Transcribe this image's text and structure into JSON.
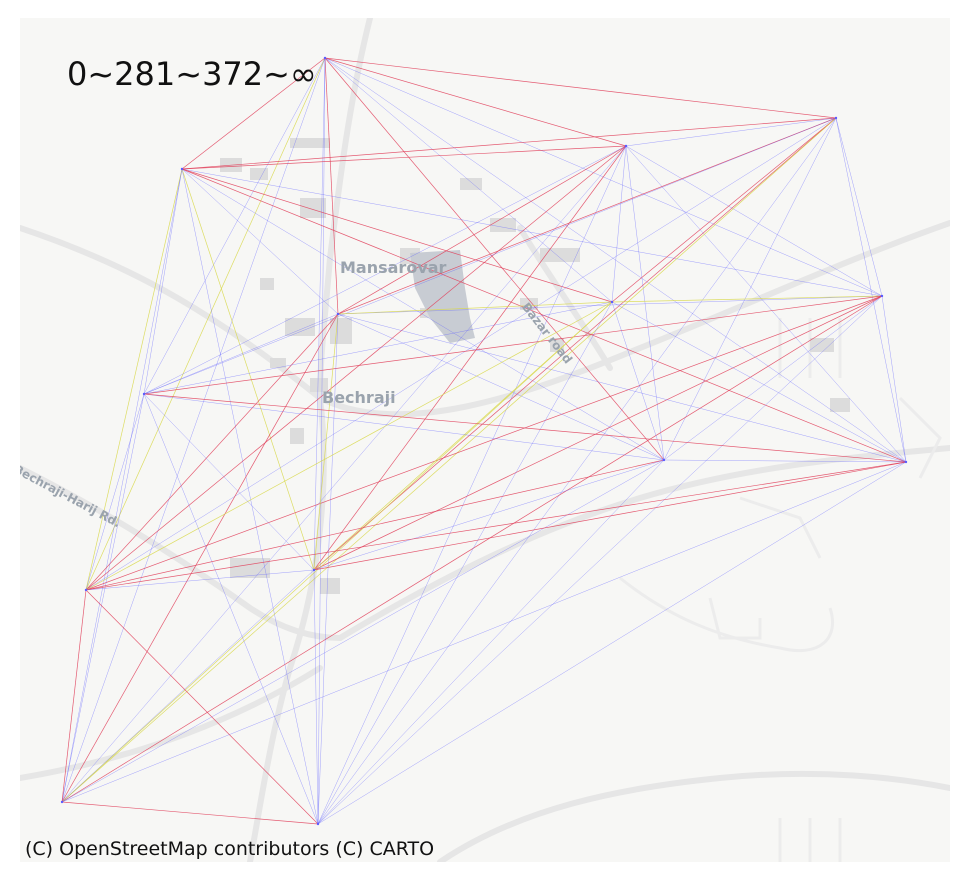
{
  "map": {
    "title": "0~281~372~∞",
    "attribution": "(C) OpenStreetMap contributors (C) CARTO",
    "places": [
      {
        "id": "mansarovar",
        "name": "Mansarovar"
      },
      {
        "id": "bechraji",
        "name": "Bechraji"
      },
      {
        "id": "bazar-road",
        "name": "Bazar road"
      },
      {
        "id": "bechraji-harij-rd",
        "name": "Bechraji-Harij Rd."
      }
    ],
    "edge_colors": {
      "band1": "#5b5bff",
      "band2": "#d8d84a",
      "band3": "#e0405a"
    },
    "basemap_colors": {
      "background": "#f7f7f5",
      "road": "#e3e3e3",
      "building": "#dadada",
      "water": "#c8ccd3"
    }
  }
}
